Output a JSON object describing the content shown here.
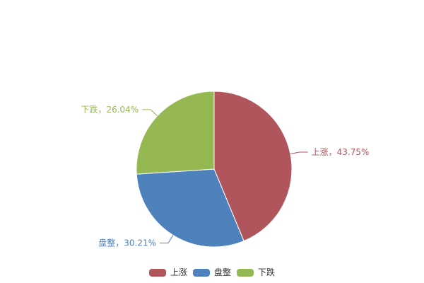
{
  "chart_data": {
    "type": "pie",
    "title": "",
    "start_angle_deg": 0,
    "direction": "clockwise",
    "background_color": "#ffffff",
    "legend_position": "bottom",
    "legend_text_color": "#333333",
    "slices": [
      {
        "label": "上涨",
        "value": 43.75,
        "display_label": "上涨，43.75%",
        "color": "#b1555c"
      },
      {
        "label": "盘整",
        "value": 30.21,
        "display_label": "盘整，30.21%",
        "color": "#4f81bd"
      },
      {
        "label": "下跌",
        "value": 26.04,
        "display_label": "下跌，26.04%",
        "color": "#96b853"
      }
    ],
    "legend": [
      {
        "label": "上涨",
        "color": "#b1555c"
      },
      {
        "label": "盘整",
        "color": "#4f81bd"
      },
      {
        "label": "下跌",
        "color": "#96b853"
      }
    ]
  }
}
